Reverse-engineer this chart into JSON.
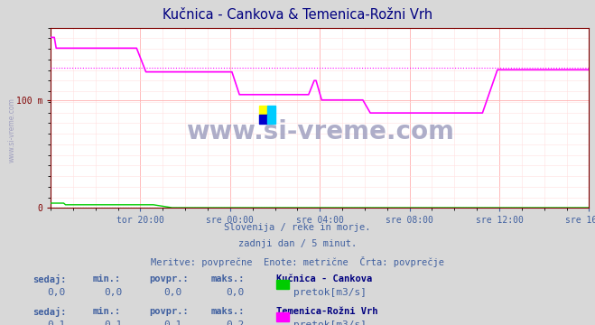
{
  "title": "Kučnica - Cankova & Temenica-Rožni Vrh",
  "title_color": "#000080",
  "bg_color": "#d8d8d8",
  "plot_bg_color": "#ffffff",
  "grid_color_major": "#ffb0b0",
  "grid_color_minor": "#ffe0e0",
  "watermark_text": "www.si-vreme.com",
  "watermark_color": "#a0a0c0",
  "subtitle_lines": [
    "Slovenija / reke in morje.",
    "zadnji dan / 5 minut.",
    "Meritve: povprečne  Enote: metrične  Črta: povprečje"
  ],
  "subtitle_color": "#4060a0",
  "xlabels": [
    "tor 20:00",
    "sre 00:00",
    "sre 04:00",
    "sre 08:00",
    "sre 12:00",
    "sre 16:00"
  ],
  "ylabel_color": "#800000",
  "ylim": [
    0,
    167
  ],
  "n_points": 289,
  "green_line_color": "#00cc00",
  "magenta_line_color": "#ff00ff",
  "magenta_avg_value": 130,
  "green_avg_value": 0.5,
  "axis_label_color": "#4060a0",
  "left_label_color": "#5080a0",
  "legend_info": [
    {
      "name": "Kučnica - Cankova",
      "color": "#00cc00",
      "unit": "pretok[m3/s]",
      "sedaj": "0,0",
      "min": "0,0",
      "povpr": "0,0",
      "maks": "0,0"
    },
    {
      "name": "Temenica-Rožni Vrh",
      "color": "#ff00ff",
      "unit": "pretok[m3/s]",
      "sedaj": "0,1",
      "min": "0,1",
      "povpr": "0,1",
      "maks": "0,2"
    }
  ]
}
